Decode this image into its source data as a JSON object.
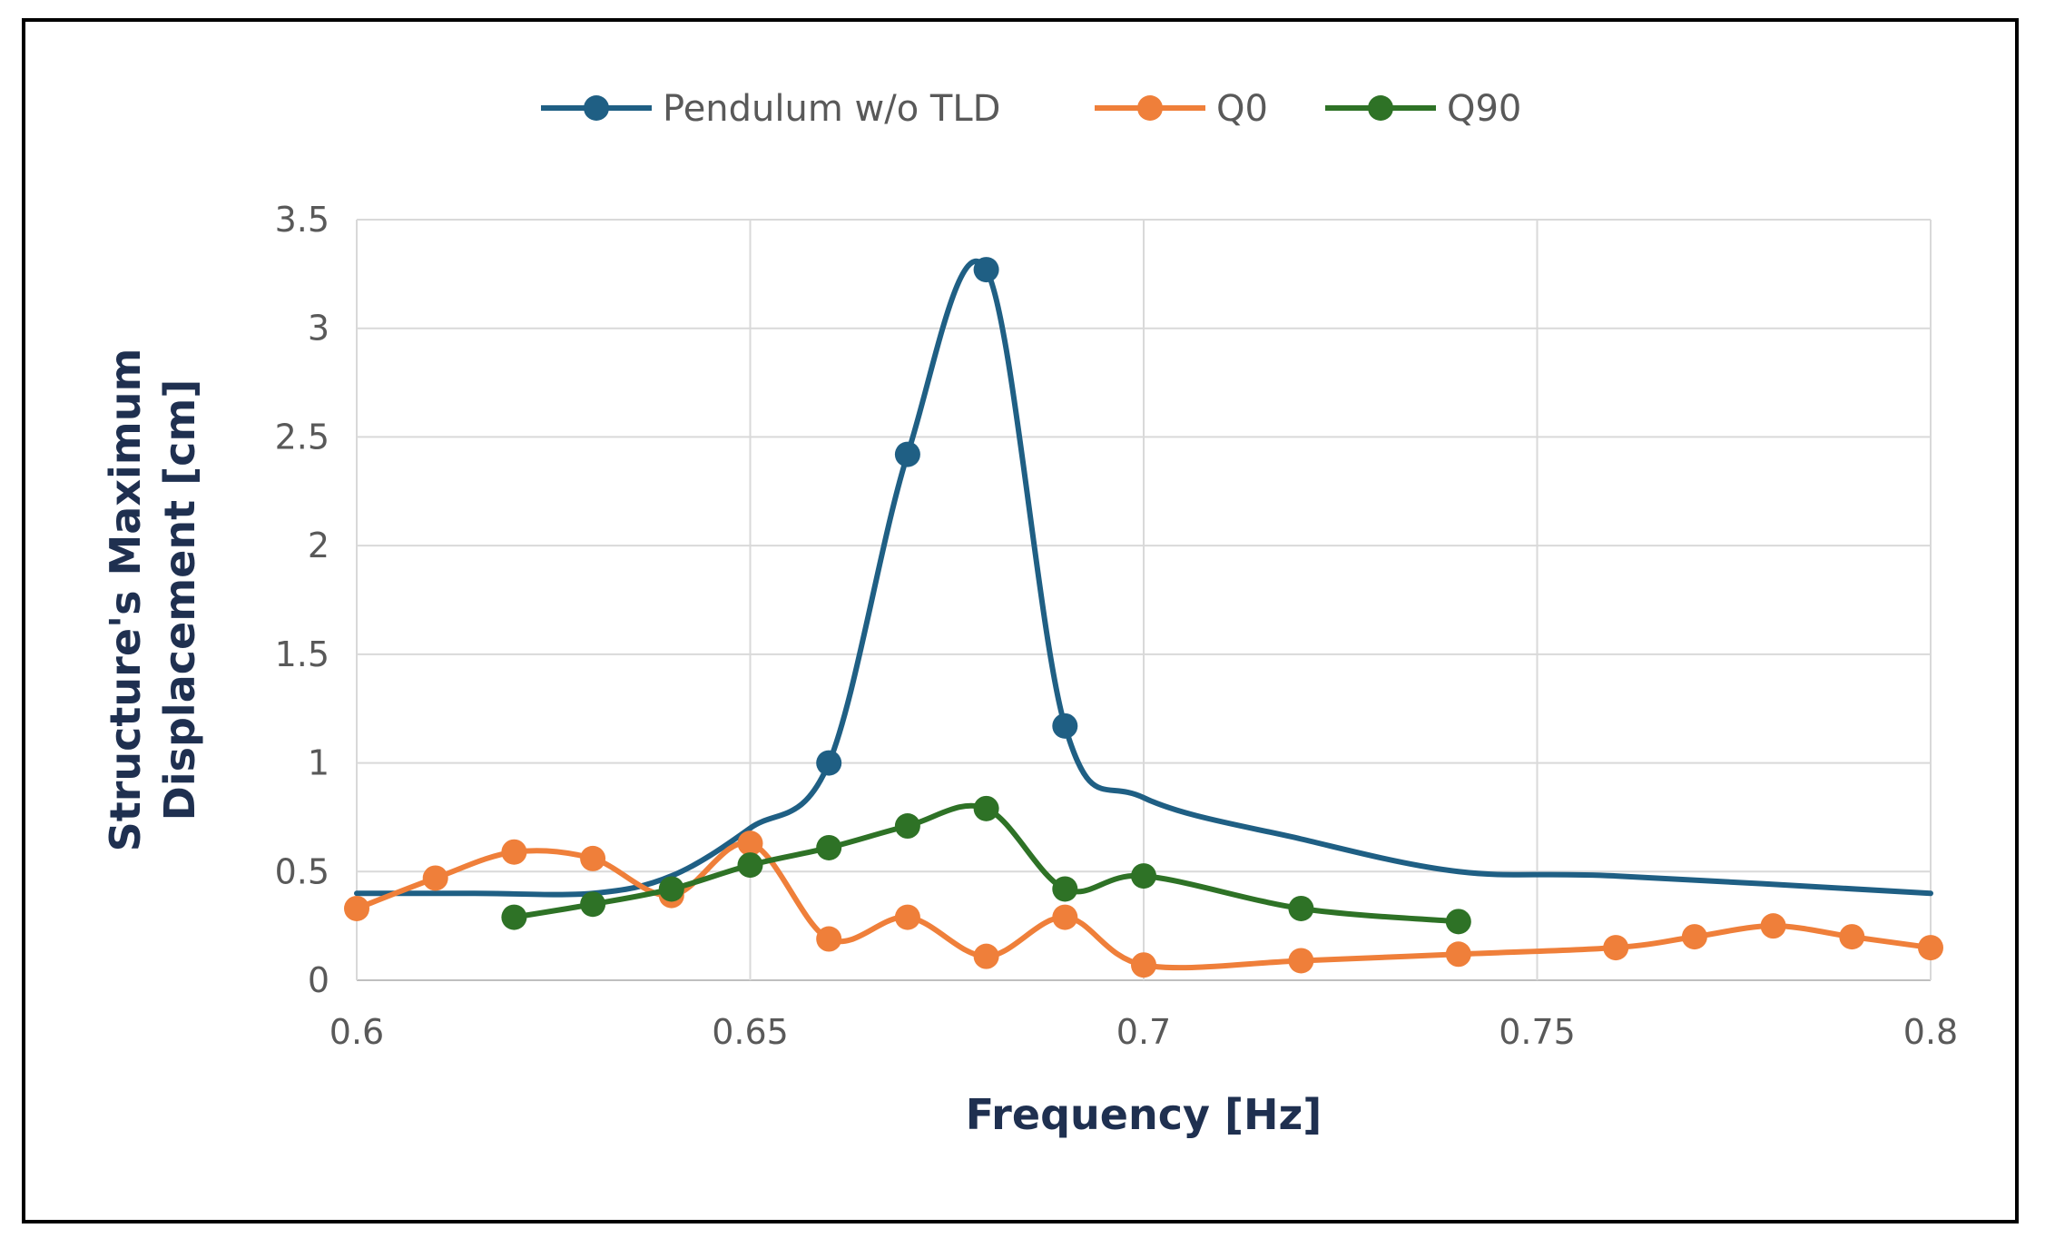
{
  "chart_data": {
    "type": "line",
    "title": "",
    "xlabel": "Frequency [Hz]",
    "ylabel": [
      "Structure's Maximum",
      "Displacement [cm]"
    ],
    "xlim": [
      0.6,
      0.8
    ],
    "ylim": [
      0,
      3.5
    ],
    "xticks": [
      0.6,
      0.65,
      0.7,
      0.75,
      0.8
    ],
    "xtick_labels": [
      "0.6",
      "0.65",
      "0.7",
      "0.75",
      "0.8"
    ],
    "yticks": [
      0,
      0.5,
      1,
      1.5,
      2,
      2.5,
      3,
      3.5
    ],
    "ytick_labels": [
      "0",
      "0.5",
      "1",
      "1.5",
      "2",
      "2.5",
      "3",
      "3.5"
    ],
    "grid": true,
    "legend_position": "top",
    "series": [
      {
        "name": "Pendulum w/o TLD",
        "color": "#1f5f84",
        "curve": [
          [
            0.6,
            0.4
          ],
          [
            0.615,
            0.4
          ],
          [
            0.63,
            0.4
          ],
          [
            0.64,
            0.48
          ],
          [
            0.65,
            0.7
          ],
          [
            0.66,
            1.0
          ],
          [
            0.67,
            2.42
          ],
          [
            0.68,
            3.27
          ],
          [
            0.69,
            1.17
          ],
          [
            0.7,
            0.84
          ],
          [
            0.72,
            0.65
          ],
          [
            0.74,
            0.5
          ],
          [
            0.76,
            0.48
          ],
          [
            0.8,
            0.4
          ]
        ],
        "markers": [
          [
            0.66,
            1.0
          ],
          [
            0.67,
            2.42
          ],
          [
            0.68,
            3.27
          ],
          [
            0.69,
            1.17
          ]
        ]
      },
      {
        "name": "Q0",
        "color": "#ef7f3a",
        "curve": [
          [
            0.6,
            0.33
          ],
          [
            0.61,
            0.47
          ],
          [
            0.62,
            0.59
          ],
          [
            0.63,
            0.56
          ],
          [
            0.64,
            0.39
          ],
          [
            0.65,
            0.63
          ],
          [
            0.66,
            0.19
          ],
          [
            0.67,
            0.29
          ],
          [
            0.68,
            0.11
          ],
          [
            0.69,
            0.29
          ],
          [
            0.7,
            0.07
          ],
          [
            0.72,
            0.09
          ],
          [
            0.74,
            0.12
          ],
          [
            0.76,
            0.15
          ],
          [
            0.77,
            0.2
          ],
          [
            0.78,
            0.25
          ],
          [
            0.79,
            0.2
          ],
          [
            0.8,
            0.15
          ]
        ],
        "markers": [
          [
            0.6,
            0.33
          ],
          [
            0.61,
            0.47
          ],
          [
            0.62,
            0.59
          ],
          [
            0.63,
            0.56
          ],
          [
            0.64,
            0.39
          ],
          [
            0.65,
            0.63
          ],
          [
            0.66,
            0.19
          ],
          [
            0.67,
            0.29
          ],
          [
            0.68,
            0.11
          ],
          [
            0.69,
            0.29
          ],
          [
            0.7,
            0.07
          ],
          [
            0.72,
            0.09
          ],
          [
            0.74,
            0.12
          ],
          [
            0.76,
            0.15
          ],
          [
            0.77,
            0.2
          ],
          [
            0.78,
            0.25
          ],
          [
            0.79,
            0.2
          ],
          [
            0.8,
            0.15
          ]
        ]
      },
      {
        "name": "Q90",
        "color": "#2e7226",
        "curve": [
          [
            0.62,
            0.29
          ],
          [
            0.63,
            0.35
          ],
          [
            0.64,
            0.42
          ],
          [
            0.65,
            0.53
          ],
          [
            0.66,
            0.61
          ],
          [
            0.67,
            0.71
          ],
          [
            0.68,
            0.79
          ],
          [
            0.69,
            0.42
          ],
          [
            0.7,
            0.48
          ],
          [
            0.72,
            0.33
          ],
          [
            0.74,
            0.27
          ]
        ],
        "markers": [
          [
            0.62,
            0.29
          ],
          [
            0.63,
            0.35
          ],
          [
            0.64,
            0.42
          ],
          [
            0.65,
            0.53
          ],
          [
            0.66,
            0.61
          ],
          [
            0.67,
            0.71
          ],
          [
            0.68,
            0.79
          ],
          [
            0.69,
            0.42
          ],
          [
            0.7,
            0.48
          ],
          [
            0.72,
            0.33
          ],
          [
            0.74,
            0.27
          ]
        ]
      }
    ]
  }
}
